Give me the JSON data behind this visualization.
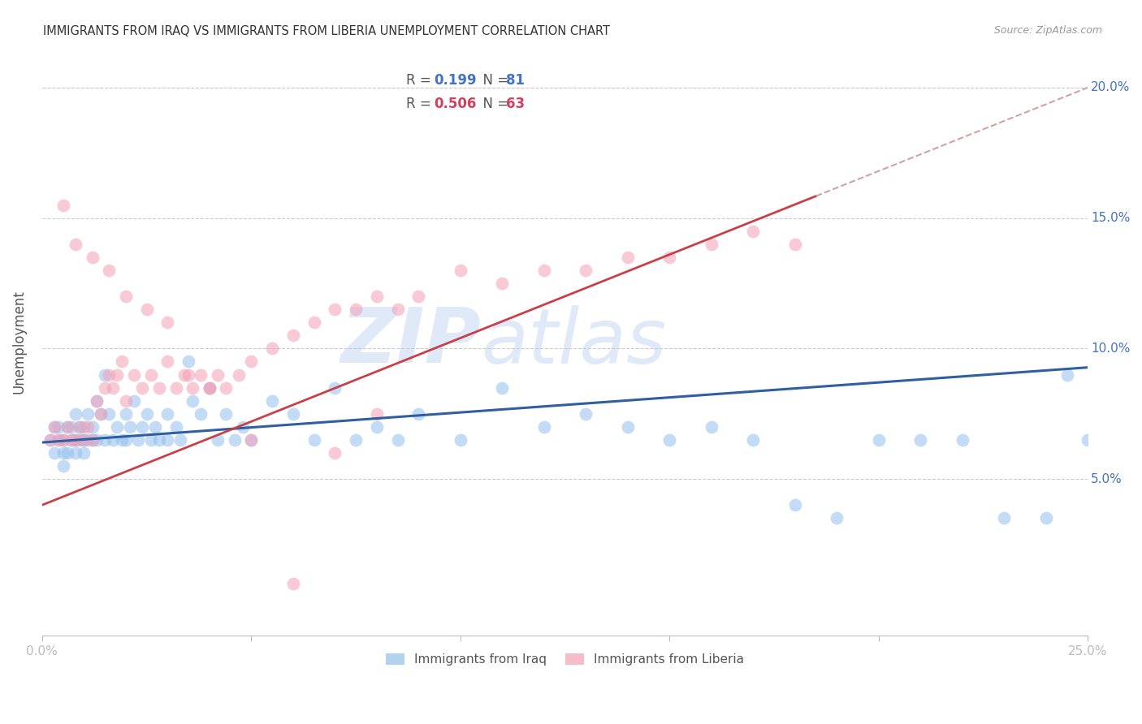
{
  "title": "IMMIGRANTS FROM IRAQ VS IMMIGRANTS FROM LIBERIA UNEMPLOYMENT CORRELATION CHART",
  "source": "Source: ZipAtlas.com",
  "ylabel": "Unemployment",
  "xlim": [
    0.0,
    0.25
  ],
  "ylim": [
    -0.01,
    0.215
  ],
  "yticks": [
    0.05,
    0.1,
    0.15,
    0.2
  ],
  "ytick_labels": [
    "5.0%",
    "10.0%",
    "15.0%",
    "20.0%"
  ],
  "iraq_color": "#92BFED",
  "liberia_color": "#F4A0B4",
  "iraq_line_color": "#2E5FA3",
  "liberia_line_color": "#C8404A",
  "liberia_dashed_color": "#D4A0A8",
  "iraq_R": "0.199",
  "iraq_N": "81",
  "liberia_R": "0.506",
  "liberia_N": "63",
  "legend_label_iraq": "Immigrants from Iraq",
  "legend_label_liberia": "Immigrants from Liberia",
  "watermark_zip": "ZIP",
  "watermark_atlas": "atlas",
  "iraq_scatter_x": [
    0.002,
    0.003,
    0.003,
    0.004,
    0.004,
    0.005,
    0.005,
    0.005,
    0.006,
    0.006,
    0.007,
    0.007,
    0.008,
    0.008,
    0.008,
    0.009,
    0.009,
    0.01,
    0.01,
    0.01,
    0.011,
    0.011,
    0.012,
    0.012,
    0.013,
    0.013,
    0.014,
    0.015,
    0.015,
    0.016,
    0.017,
    0.018,
    0.019,
    0.02,
    0.02,
    0.021,
    0.022,
    0.023,
    0.024,
    0.025,
    0.026,
    0.027,
    0.028,
    0.03,
    0.03,
    0.032,
    0.033,
    0.035,
    0.036,
    0.038,
    0.04,
    0.042,
    0.044,
    0.046,
    0.048,
    0.05,
    0.055,
    0.06,
    0.065,
    0.07,
    0.075,
    0.08,
    0.085,
    0.09,
    0.1,
    0.11,
    0.12,
    0.13,
    0.14,
    0.15,
    0.16,
    0.17,
    0.18,
    0.19,
    0.2,
    0.21,
    0.22,
    0.23,
    0.24,
    0.245,
    0.25
  ],
  "iraq_scatter_y": [
    0.065,
    0.07,
    0.06,
    0.065,
    0.07,
    0.06,
    0.065,
    0.055,
    0.07,
    0.06,
    0.065,
    0.07,
    0.06,
    0.065,
    0.075,
    0.065,
    0.07,
    0.06,
    0.065,
    0.07,
    0.065,
    0.075,
    0.065,
    0.07,
    0.065,
    0.08,
    0.075,
    0.065,
    0.09,
    0.075,
    0.065,
    0.07,
    0.065,
    0.075,
    0.065,
    0.07,
    0.08,
    0.065,
    0.07,
    0.075,
    0.065,
    0.07,
    0.065,
    0.075,
    0.065,
    0.07,
    0.065,
    0.095,
    0.08,
    0.075,
    0.085,
    0.065,
    0.075,
    0.065,
    0.07,
    0.065,
    0.08,
    0.075,
    0.065,
    0.085,
    0.065,
    0.07,
    0.065,
    0.075,
    0.065,
    0.085,
    0.07,
    0.075,
    0.07,
    0.065,
    0.07,
    0.065,
    0.04,
    0.035,
    0.065,
    0.065,
    0.065,
    0.035,
    0.035,
    0.09,
    0.065
  ],
  "liberia_scatter_x": [
    0.002,
    0.003,
    0.004,
    0.005,
    0.006,
    0.007,
    0.008,
    0.009,
    0.01,
    0.011,
    0.012,
    0.013,
    0.014,
    0.015,
    0.016,
    0.017,
    0.018,
    0.019,
    0.02,
    0.022,
    0.024,
    0.026,
    0.028,
    0.03,
    0.032,
    0.034,
    0.036,
    0.038,
    0.04,
    0.042,
    0.044,
    0.047,
    0.05,
    0.055,
    0.06,
    0.065,
    0.07,
    0.075,
    0.08,
    0.085,
    0.09,
    0.1,
    0.11,
    0.12,
    0.13,
    0.14,
    0.15,
    0.16,
    0.17,
    0.18,
    0.005,
    0.008,
    0.012,
    0.016,
    0.02,
    0.025,
    0.03,
    0.035,
    0.04,
    0.05,
    0.06,
    0.07,
    0.08
  ],
  "liberia_scatter_y": [
    0.065,
    0.07,
    0.065,
    0.065,
    0.07,
    0.065,
    0.065,
    0.07,
    0.065,
    0.07,
    0.065,
    0.08,
    0.075,
    0.085,
    0.09,
    0.085,
    0.09,
    0.095,
    0.08,
    0.09,
    0.085,
    0.09,
    0.085,
    0.095,
    0.085,
    0.09,
    0.085,
    0.09,
    0.085,
    0.09,
    0.085,
    0.09,
    0.095,
    0.1,
    0.105,
    0.11,
    0.115,
    0.115,
    0.12,
    0.115,
    0.12,
    0.13,
    0.125,
    0.13,
    0.13,
    0.135,
    0.135,
    0.14,
    0.145,
    0.14,
    0.155,
    0.14,
    0.135,
    0.13,
    0.12,
    0.115,
    0.11,
    0.09,
    0.085,
    0.065,
    0.01,
    0.06,
    0.075
  ]
}
